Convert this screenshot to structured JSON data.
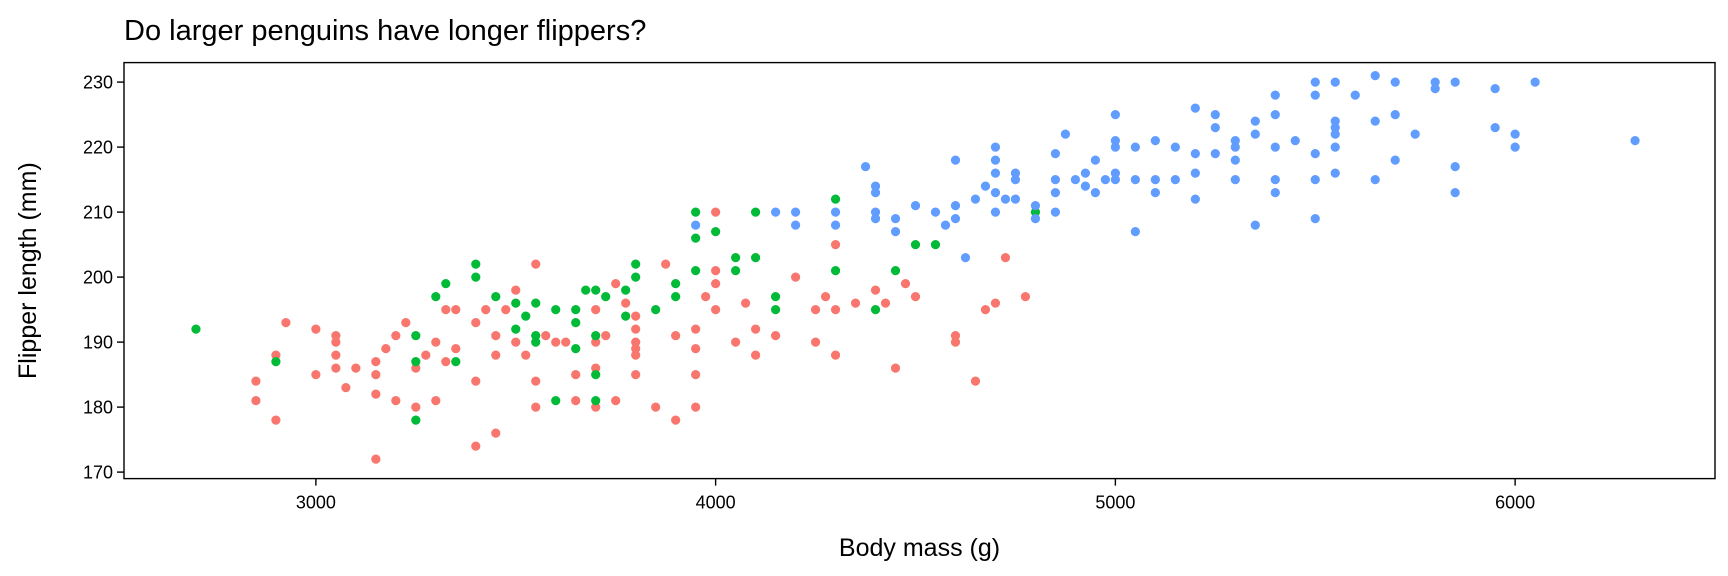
{
  "chart_data": {
    "type": "scatter",
    "title": "Do larger penguins have longer flippers?",
    "xlabel": "Body mass (g)",
    "ylabel": "Flipper length (mm)",
    "xlim": [
      2520,
      6500
    ],
    "ylim": [
      169,
      233
    ],
    "x_ticks": [
      3000,
      4000,
      5000,
      6000
    ],
    "y_ticks": [
      170,
      180,
      190,
      200,
      210,
      220,
      230
    ],
    "grid": false,
    "legend": "none",
    "series": [
      {
        "color": "#F8766D",
        "points": [
          [
            2850,
            184
          ],
          [
            2850,
            181
          ],
          [
            2900,
            188
          ],
          [
            2900,
            178
          ],
          [
            2925,
            193
          ],
          [
            3000,
            185
          ],
          [
            3000,
            192
          ],
          [
            3050,
            191
          ],
          [
            3050,
            190
          ],
          [
            3050,
            188
          ],
          [
            3050,
            186
          ],
          [
            3075,
            183
          ],
          [
            3100,
            186
          ],
          [
            3150,
            187
          ],
          [
            3150,
            185
          ],
          [
            3150,
            182
          ],
          [
            3150,
            172
          ],
          [
            3175,
            189
          ],
          [
            3200,
            191
          ],
          [
            3200,
            181
          ],
          [
            3225,
            193
          ],
          [
            3250,
            186
          ],
          [
            3250,
            180
          ],
          [
            3275,
            188
          ],
          [
            3300,
            190
          ],
          [
            3300,
            181
          ],
          [
            3325,
            195
          ],
          [
            3325,
            187
          ],
          [
            3350,
            195
          ],
          [
            3350,
            189
          ],
          [
            3400,
            184
          ],
          [
            3400,
            174
          ],
          [
            3400,
            193
          ],
          [
            3425,
            195
          ],
          [
            3450,
            191
          ],
          [
            3450,
            176
          ],
          [
            3450,
            188
          ],
          [
            3475,
            195
          ],
          [
            3500,
            198
          ],
          [
            3500,
            190
          ],
          [
            3525,
            188
          ],
          [
            3550,
            202
          ],
          [
            3550,
            184
          ],
          [
            3550,
            180
          ],
          [
            3575,
            191
          ],
          [
            3600,
            190
          ],
          [
            3625,
            190
          ],
          [
            3650,
            181
          ],
          [
            3650,
            185
          ],
          [
            3700,
            195
          ],
          [
            3700,
            186
          ],
          [
            3700,
            180
          ],
          [
            3700,
            190
          ],
          [
            3725,
            191
          ],
          [
            3750,
            199
          ],
          [
            3750,
            181
          ],
          [
            3775,
            196
          ],
          [
            3800,
            194
          ],
          [
            3800,
            185
          ],
          [
            3800,
            190
          ],
          [
            3800,
            192
          ],
          [
            3800,
            188
          ],
          [
            3800,
            189
          ],
          [
            3850,
            180
          ],
          [
            3875,
            202
          ],
          [
            3900,
            191
          ],
          [
            3900,
            178
          ],
          [
            3950,
            192
          ],
          [
            3950,
            189
          ],
          [
            3950,
            185
          ],
          [
            3950,
            180
          ],
          [
            3975,
            197
          ],
          [
            4000,
            210
          ],
          [
            4000,
            201
          ],
          [
            4000,
            199
          ],
          [
            4000,
            195
          ],
          [
            4050,
            190
          ],
          [
            4075,
            196
          ],
          [
            4100,
            192
          ],
          [
            4100,
            188
          ],
          [
            4150,
            191
          ],
          [
            4200,
            200
          ],
          [
            4250,
            195
          ],
          [
            4250,
            190
          ],
          [
            4275,
            197
          ],
          [
            4300,
            205
          ],
          [
            4300,
            195
          ],
          [
            4300,
            188
          ],
          [
            4350,
            196
          ],
          [
            4400,
            198
          ],
          [
            4425,
            196
          ],
          [
            4450,
            186
          ],
          [
            4475,
            199
          ],
          [
            4500,
            197
          ],
          [
            4600,
            191
          ],
          [
            4600,
            190
          ],
          [
            4650,
            184
          ],
          [
            4675,
            195
          ],
          [
            4700,
            196
          ],
          [
            4725,
            203
          ],
          [
            4775,
            197
          ]
        ]
      },
      {
        "color": "#00BA38",
        "points": [
          [
            2700,
            192
          ],
          [
            2900,
            187
          ],
          [
            3250,
            191
          ],
          [
            3250,
            187
          ],
          [
            3250,
            178
          ],
          [
            3300,
            197
          ],
          [
            3325,
            199
          ],
          [
            3350,
            187
          ],
          [
            3400,
            202
          ],
          [
            3400,
            200
          ],
          [
            3450,
            197
          ],
          [
            3500,
            196
          ],
          [
            3500,
            192
          ],
          [
            3525,
            194
          ],
          [
            3550,
            196
          ],
          [
            3550,
            190
          ],
          [
            3550,
            191
          ],
          [
            3600,
            195
          ],
          [
            3600,
            181
          ],
          [
            3650,
            193
          ],
          [
            3650,
            195
          ],
          [
            3650,
            189
          ],
          [
            3675,
            198
          ],
          [
            3700,
            198
          ],
          [
            3700,
            191
          ],
          [
            3700,
            185
          ],
          [
            3700,
            181
          ],
          [
            3725,
            197
          ],
          [
            3775,
            194
          ],
          [
            3775,
            198
          ],
          [
            3800,
            202
          ],
          [
            3800,
            200
          ],
          [
            3850,
            195
          ],
          [
            3900,
            199
          ],
          [
            3900,
            197
          ],
          [
            3950,
            210
          ],
          [
            3950,
            206
          ],
          [
            3950,
            201
          ],
          [
            4000,
            207
          ],
          [
            4050,
            203
          ],
          [
            4050,
            201
          ],
          [
            4100,
            210
          ],
          [
            4100,
            203
          ],
          [
            4150,
            197
          ],
          [
            4150,
            195
          ],
          [
            4300,
            212
          ],
          [
            4300,
            201
          ],
          [
            4400,
            195
          ],
          [
            4450,
            201
          ],
          [
            4500,
            205
          ],
          [
            4550,
            205
          ],
          [
            4800,
            210
          ]
        ]
      },
      {
        "color": "#619CFF",
        "points": [
          [
            3950,
            208
          ],
          [
            4150,
            210
          ],
          [
            4200,
            210
          ],
          [
            4200,
            208
          ],
          [
            4300,
            210
          ],
          [
            4300,
            208
          ],
          [
            4375,
            217
          ],
          [
            4400,
            214
          ],
          [
            4400,
            213
          ],
          [
            4400,
            210
          ],
          [
            4400,
            209
          ],
          [
            4450,
            209
          ],
          [
            4450,
            207
          ],
          [
            4500,
            211
          ],
          [
            4550,
            210
          ],
          [
            4575,
            208
          ],
          [
            4600,
            218
          ],
          [
            4600,
            211
          ],
          [
            4600,
            209
          ],
          [
            4625,
            203
          ],
          [
            4650,
            212
          ],
          [
            4675,
            214
          ],
          [
            4700,
            220
          ],
          [
            4700,
            218
          ],
          [
            4700,
            216
          ],
          [
            4700,
            213
          ],
          [
            4700,
            210
          ],
          [
            4725,
            212
          ],
          [
            4750,
            216
          ],
          [
            4750,
            215
          ],
          [
            4750,
            212
          ],
          [
            4800,
            211
          ],
          [
            4800,
            209
          ],
          [
            4850,
            219
          ],
          [
            4850,
            215
          ],
          [
            4850,
            213
          ],
          [
            4850,
            210
          ],
          [
            4875,
            222
          ],
          [
            4900,
            215
          ],
          [
            4925,
            216
          ],
          [
            4925,
            214
          ],
          [
            4950,
            218
          ],
          [
            4950,
            213
          ],
          [
            4975,
            215
          ],
          [
            5000,
            225
          ],
          [
            5000,
            221
          ],
          [
            5000,
            220
          ],
          [
            5000,
            216
          ],
          [
            5000,
            215
          ],
          [
            5050,
            220
          ],
          [
            5050,
            215
          ],
          [
            5050,
            207
          ],
          [
            5100,
            221
          ],
          [
            5100,
            215
          ],
          [
            5100,
            213
          ],
          [
            5150,
            220
          ],
          [
            5150,
            215
          ],
          [
            5200,
            226
          ],
          [
            5200,
            219
          ],
          [
            5200,
            216
          ],
          [
            5200,
            212
          ],
          [
            5250,
            225
          ],
          [
            5250,
            223
          ],
          [
            5250,
            219
          ],
          [
            5300,
            221
          ],
          [
            5300,
            220
          ],
          [
            5300,
            218
          ],
          [
            5300,
            215
          ],
          [
            5350,
            224
          ],
          [
            5350,
            222
          ],
          [
            5350,
            208
          ],
          [
            5400,
            228
          ],
          [
            5400,
            225
          ],
          [
            5400,
            220
          ],
          [
            5400,
            215
          ],
          [
            5400,
            213
          ],
          [
            5450,
            221
          ],
          [
            5500,
            230
          ],
          [
            5500,
            228
          ],
          [
            5500,
            219
          ],
          [
            5500,
            215
          ],
          [
            5500,
            209
          ],
          [
            5550,
            230
          ],
          [
            5550,
            224
          ],
          [
            5550,
            223
          ],
          [
            5550,
            222
          ],
          [
            5550,
            220
          ],
          [
            5550,
            216
          ],
          [
            5600,
            228
          ],
          [
            5650,
            231
          ],
          [
            5650,
            224
          ],
          [
            5650,
            215
          ],
          [
            5700,
            230
          ],
          [
            5700,
            225
          ],
          [
            5700,
            218
          ],
          [
            5750,
            222
          ],
          [
            5800,
            230
          ],
          [
            5800,
            229
          ],
          [
            5850,
            230
          ],
          [
            5850,
            217
          ],
          [
            5850,
            213
          ],
          [
            5950,
            229
          ],
          [
            5950,
            223
          ],
          [
            6000,
            222
          ],
          [
            6000,
            220
          ],
          [
            6050,
            230
          ],
          [
            6300,
            221
          ]
        ]
      }
    ]
  }
}
